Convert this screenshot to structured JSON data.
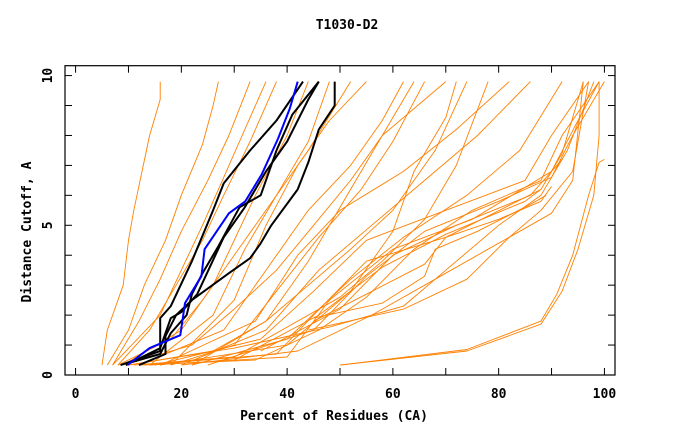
{
  "chart_data": {
    "type": "line",
    "title": "T1030-D2",
    "xlabel": "Percent of Residues (CA)",
    "ylabel": "Distance Cutoff, A",
    "xlim": [
      -2,
      102
    ],
    "ylim": [
      0,
      10.33
    ],
    "xticks": [
      0,
      20,
      40,
      60,
      80,
      100
    ],
    "xtick_labels": [
      "0",
      "20",
      "40",
      "60",
      "80",
      "100"
    ],
    "yticks": [
      0,
      5,
      10
    ],
    "ytick_labels": [
      "0",
      "5",
      "10"
    ],
    "grid": false,
    "colors": {
      "others": "#ff8000",
      "highlight": "#0000ff",
      "reference": "#000000"
    },
    "highlight_series": [
      {
        "points": [
          [
            9.8,
            0.33
          ],
          [
            14,
            0.9
          ],
          [
            19.8,
            1.33
          ],
          [
            20.7,
            2.4
          ],
          [
            23.8,
            3.3
          ],
          [
            24.4,
            4.2
          ],
          [
            29,
            5.4
          ],
          [
            32.1,
            5.8
          ],
          [
            35.2,
            6.7
          ],
          [
            38.3,
            7.9
          ],
          [
            40.5,
            8.9
          ],
          [
            42,
            9.8
          ]
        ]
      }
    ],
    "reference_series": [
      {
        "points": [
          [
            8.5,
            0.33
          ],
          [
            16,
            0.8
          ],
          [
            16,
            1.9
          ],
          [
            18,
            2.3
          ],
          [
            22,
            3.8
          ],
          [
            26,
            5.5
          ],
          [
            28,
            6.4
          ],
          [
            33,
            7.5
          ],
          [
            38,
            8.5
          ],
          [
            43,
            9.8
          ]
        ]
      },
      {
        "points": [
          [
            9.5,
            0.33
          ],
          [
            16,
            0.9
          ],
          [
            17,
            1.4
          ],
          [
            18,
            1.9
          ],
          [
            20,
            2.1
          ],
          [
            23,
            2.7
          ],
          [
            28,
            4.6
          ],
          [
            32,
            5.6
          ],
          [
            36,
            6.8
          ],
          [
            40,
            7.8
          ],
          [
            44,
            9.2
          ],
          [
            46,
            9.8
          ]
        ]
      },
      {
        "points": [
          [
            12,
            0.33
          ],
          [
            17,
            0.7
          ],
          [
            17,
            1.3
          ],
          [
            19,
            2.0
          ],
          [
            22,
            2.5
          ],
          [
            29,
            3.4
          ],
          [
            33,
            3.9
          ],
          [
            35,
            4.4
          ],
          [
            37,
            5.0
          ],
          [
            42,
            6.2
          ],
          [
            44,
            7.1
          ],
          [
            46,
            8.2
          ],
          [
            49,
            9.0
          ],
          [
            49,
            9.8
          ]
        ]
      },
      {
        "points": [
          [
            10,
            0.4
          ],
          [
            16,
            0.7
          ],
          [
            18,
            1.4
          ],
          [
            21,
            2.0
          ],
          [
            22,
            2.7
          ],
          [
            24,
            3.4
          ],
          [
            27,
            4.3
          ],
          [
            31,
            5.6
          ],
          [
            35,
            6.0
          ],
          [
            38,
            7.5
          ],
          [
            41,
            8.7
          ],
          [
            46,
            9.8
          ]
        ]
      }
    ],
    "other_series": [
      {
        "points": [
          [
            5,
            0.33
          ],
          [
            6,
            1.5
          ],
          [
            9,
            3
          ],
          [
            10,
            4.5
          ],
          [
            11,
            5.5
          ],
          [
            14,
            8
          ],
          [
            16,
            9.2
          ],
          [
            16,
            9.8
          ]
        ]
      },
      {
        "points": [
          [
            6,
            0.33
          ],
          [
            10,
            1.5
          ],
          [
            13,
            3
          ],
          [
            17,
            4.5
          ],
          [
            20,
            6
          ],
          [
            24,
            7.7
          ],
          [
            26,
            9
          ],
          [
            27,
            9.8
          ]
        ]
      },
      {
        "points": [
          [
            7,
            0.33
          ],
          [
            12,
            1.8
          ],
          [
            16,
            3.2
          ],
          [
            20,
            4.8
          ],
          [
            25,
            6.5
          ],
          [
            29,
            8
          ],
          [
            33,
            9.8
          ]
        ]
      },
      {
        "points": [
          [
            8,
            0.33
          ],
          [
            14,
            1.5
          ],
          [
            19,
            3
          ],
          [
            24,
            4.5
          ],
          [
            28,
            6
          ],
          [
            33,
            7.8
          ],
          [
            38,
            9.8
          ]
        ]
      },
      {
        "points": [
          [
            8,
            0.33
          ],
          [
            18,
            1.2
          ],
          [
            24,
            2.5
          ],
          [
            30,
            4
          ],
          [
            36,
            5.5
          ],
          [
            44,
            7.5
          ],
          [
            52,
            9.8
          ]
        ]
      },
      {
        "points": [
          [
            9,
            0.33
          ],
          [
            22,
            1
          ],
          [
            30,
            2.2
          ],
          [
            38,
            3.5
          ],
          [
            45,
            5
          ],
          [
            52,
            6.5
          ],
          [
            58,
            8
          ],
          [
            64,
            9.8
          ]
        ]
      },
      {
        "points": [
          [
            10,
            0.33
          ],
          [
            26,
            0.8
          ],
          [
            36,
            1.8
          ],
          [
            44,
            3
          ],
          [
            52,
            4.2
          ],
          [
            60,
            5.5
          ],
          [
            68,
            7.5
          ],
          [
            74,
            9.8
          ]
        ]
      },
      {
        "points": [
          [
            11,
            0.33
          ],
          [
            30,
            0.6
          ],
          [
            40,
            1.6
          ],
          [
            50,
            2.6
          ],
          [
            58,
            3.8
          ],
          [
            66,
            5.2
          ],
          [
            72,
            7
          ],
          [
            78,
            9.8
          ]
        ]
      },
      {
        "points": [
          [
            12,
            0.33
          ],
          [
            34,
            0.5
          ],
          [
            46,
            1.5
          ],
          [
            55,
            2.6
          ],
          [
            64,
            4.2
          ],
          [
            75,
            5.5
          ],
          [
            88,
            6.5
          ],
          [
            92,
            8
          ],
          [
            99,
            9.8
          ]
        ]
      },
      {
        "points": [
          [
            10,
            0.33
          ],
          [
            30,
            0.9
          ],
          [
            48,
            1.6
          ],
          [
            62,
            2.3
          ],
          [
            70,
            3.5
          ],
          [
            80,
            5
          ],
          [
            88,
            6
          ],
          [
            93,
            7.5
          ],
          [
            98,
            9.8
          ]
        ]
      },
      {
        "points": [
          [
            13,
            0.33
          ],
          [
            38,
            0.7
          ],
          [
            45,
            2
          ],
          [
            55,
            3.8
          ],
          [
            70,
            4.6
          ],
          [
            88,
            6.2
          ],
          [
            92,
            7.4
          ],
          [
            96,
            9.8
          ]
        ]
      },
      {
        "points": [
          [
            14,
            0.33
          ],
          [
            40,
            0.6
          ],
          [
            48,
            2.5
          ],
          [
            60,
            4.2
          ],
          [
            75,
            5.2
          ],
          [
            90,
            6.8
          ],
          [
            95,
            8.5
          ],
          [
            99,
            9.8
          ]
        ]
      },
      {
        "points": [
          [
            15,
            0.33
          ],
          [
            35,
            1.2
          ],
          [
            45,
            2.8
          ],
          [
            55,
            4.5
          ],
          [
            70,
            5.5
          ],
          [
            85,
            6.5
          ],
          [
            90,
            8
          ],
          [
            97,
            9.8
          ]
        ]
      },
      {
        "points": [
          [
            16,
            0.33
          ],
          [
            34,
            1.8
          ],
          [
            42,
            4
          ],
          [
            50,
            5.5
          ],
          [
            62,
            6.8
          ],
          [
            72,
            8.2
          ],
          [
            82,
            9.8
          ]
        ]
      },
      {
        "points": [
          [
            12,
            0.33
          ],
          [
            28,
            1.5
          ],
          [
            36,
            3.5
          ],
          [
            44,
            5.5
          ],
          [
            52,
            7
          ],
          [
            58,
            8.5
          ],
          [
            62,
            9.8
          ]
        ]
      },
      {
        "points": [
          [
            14,
            0.33
          ],
          [
            26,
            2
          ],
          [
            32,
            4.2
          ],
          [
            38,
            6
          ],
          [
            44,
            7.8
          ],
          [
            48,
            9.8
          ]
        ]
      },
      {
        "points": [
          [
            18,
            0.33
          ],
          [
            30,
            2.5
          ],
          [
            36,
            5
          ],
          [
            42,
            7
          ],
          [
            48,
            8.5
          ],
          [
            55,
            9.8
          ]
        ]
      },
      {
        "points": [
          [
            20,
            0.33
          ],
          [
            36,
            1.5
          ],
          [
            46,
            3.5
          ],
          [
            56,
            5
          ],
          [
            66,
            6.5
          ],
          [
            76,
            8
          ],
          [
            86,
            9.8
          ]
        ]
      },
      {
        "points": [
          [
            22,
            0.33
          ],
          [
            40,
            1.2
          ],
          [
            52,
            3.2
          ],
          [
            62,
            4.6
          ],
          [
            74,
            6
          ],
          [
            84,
            7.5
          ],
          [
            92,
            9.8
          ]
        ]
      },
      {
        "points": [
          [
            25,
            0.33
          ],
          [
            45,
            1.5
          ],
          [
            55,
            3.3
          ],
          [
            66,
            4.8
          ],
          [
            80,
            5.8
          ],
          [
            90,
            6.6
          ],
          [
            94,
            8
          ],
          [
            100,
            9.8
          ]
        ]
      },
      {
        "points": [
          [
            30,
            0.5
          ],
          [
            46,
            2
          ],
          [
            58,
            3.6
          ],
          [
            70,
            4.7
          ],
          [
            85,
            5.8
          ],
          [
            88,
            6.2
          ]
        ]
      },
      {
        "points": [
          [
            35,
            0.8
          ],
          [
            50,
            2.2
          ],
          [
            60,
            4
          ],
          [
            72,
            5
          ],
          [
            86,
            6
          ],
          [
            92,
            7.2
          ]
        ]
      },
      {
        "points": [
          [
            45,
            1.8
          ],
          [
            55,
            2.7
          ],
          [
            66,
            3.7
          ],
          [
            70,
            4.6
          ],
          [
            80,
            5.2
          ],
          [
            88,
            5.8
          ],
          [
            90,
            6.3
          ]
        ]
      },
      {
        "points": [
          [
            45,
            1.9
          ],
          [
            58,
            2.4
          ],
          [
            66,
            3.3
          ],
          [
            68,
            4.2
          ],
          [
            76,
            4.8
          ],
          [
            86,
            5.7
          ],
          [
            89,
            6
          ]
        ]
      },
      {
        "points": [
          [
            44,
            1.5
          ],
          [
            62,
            2.2
          ],
          [
            74,
            3.2
          ],
          [
            82,
            4.6
          ],
          [
            88,
            5.5
          ],
          [
            94,
            6.8
          ],
          [
            97,
            9.8
          ]
        ]
      },
      {
        "points": [
          [
            50,
            0.33
          ],
          [
            74,
            0.85
          ],
          [
            88,
            1.8
          ],
          [
            91,
            2.7
          ],
          [
            94,
            4
          ],
          [
            97,
            6
          ],
          [
            99,
            7.1
          ],
          [
            100,
            7.2
          ]
        ]
      },
      {
        "points": [
          [
            50,
            0.33
          ],
          [
            74,
            0.8
          ],
          [
            88,
            1.7
          ],
          [
            92,
            2.8
          ],
          [
            95,
            4.2
          ],
          [
            98,
            6
          ],
          [
            99,
            8
          ],
          [
            99,
            9.8
          ]
        ]
      },
      {
        "points": [
          [
            18,
            0.33
          ],
          [
            30,
            1
          ],
          [
            38,
            2.8
          ],
          [
            46,
            4.6
          ],
          [
            54,
            6.2
          ],
          [
            60,
            7.8
          ],
          [
            66,
            9.8
          ]
        ]
      },
      {
        "points": [
          [
            9,
            0.33
          ],
          [
            20,
            1.5
          ],
          [
            26,
            3
          ],
          [
            30,
            4.5
          ],
          [
            34,
            6
          ],
          [
            40,
            8
          ],
          [
            44,
            9.8
          ]
        ]
      },
      {
        "points": [
          [
            7,
            0.33
          ],
          [
            16,
            2
          ],
          [
            20,
            3.5
          ],
          [
            24,
            5
          ],
          [
            28,
            6.6
          ],
          [
            32,
            8.2
          ],
          [
            36,
            9.8
          ]
        ]
      },
      {
        "points": [
          [
            20,
            0.33
          ],
          [
            42,
            0.8
          ],
          [
            56,
            2
          ],
          [
            68,
            3.2
          ],
          [
            78,
            4.2
          ],
          [
            90,
            5.4
          ],
          [
            94,
            6.5
          ],
          [
            96,
            9.8
          ]
        ]
      },
      {
        "points": [
          [
            16,
            0.33
          ],
          [
            40,
            1
          ],
          [
            52,
            2.8
          ],
          [
            60,
            4.8
          ],
          [
            64,
            6.8
          ],
          [
            70,
            8.6
          ],
          [
            72,
            9.8
          ]
        ]
      },
      {
        "points": [
          [
            22,
            0.33
          ],
          [
            36,
            1.8
          ],
          [
            44,
            3.8
          ],
          [
            52,
            6.2
          ],
          [
            58,
            8
          ],
          [
            70,
            9.8
          ]
        ]
      }
    ]
  }
}
